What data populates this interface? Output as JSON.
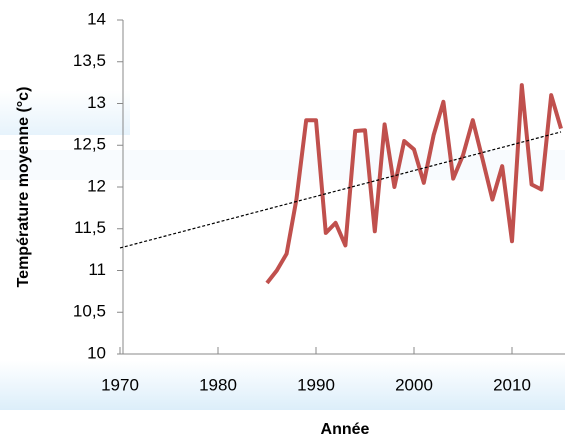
{
  "chart_data": {
    "type": "line",
    "x_label": "Année",
    "y_label": "Température moyenne (°c)",
    "series": [
      {
        "color": "#c0504d",
        "style": "solid",
        "x": [
          1985,
          1986,
          1987,
          1988,
          1989,
          1990,
          1991,
          1992,
          1993,
          1994,
          1995,
          1996,
          1997,
          1998,
          1999,
          2000,
          2001,
          2002,
          2003,
          2004,
          2005,
          2006,
          2007,
          2008,
          2009,
          2010,
          2011,
          2012,
          2013,
          2014,
          2015
        ],
        "values": [
          10.85,
          11.0,
          11.2,
          11.85,
          12.8,
          12.8,
          11.45,
          11.57,
          11.3,
          12.67,
          12.68,
          11.47,
          12.75,
          12.0,
          12.55,
          12.45,
          12.05,
          12.62,
          13.02,
          12.1,
          12.38,
          12.8,
          12.33,
          11.85,
          12.25,
          11.35,
          13.22,
          12.03,
          11.97,
          13.1,
          12.7
        ]
      },
      {
        "color": "#000000",
        "style": "dashed",
        "x": [
          1970,
          2015
        ],
        "values": [
          11.27,
          12.66
        ]
      }
    ],
    "xlim": [
      1970,
      2015
    ],
    "xticks": [
      1970,
      1980,
      1990,
      2000,
      2010
    ],
    "ylim": [
      10,
      14
    ],
    "yticks": [
      10,
      {
        "value": 10.5,
        "label": "10,5"
      },
      11,
      {
        "value": 11.5,
        "label": "11,5"
      },
      12,
      {
        "value": 12.5,
        "label": "12,5"
      },
      13,
      {
        "value": 13.5,
        "label": "13,5"
      },
      14
    ]
  }
}
